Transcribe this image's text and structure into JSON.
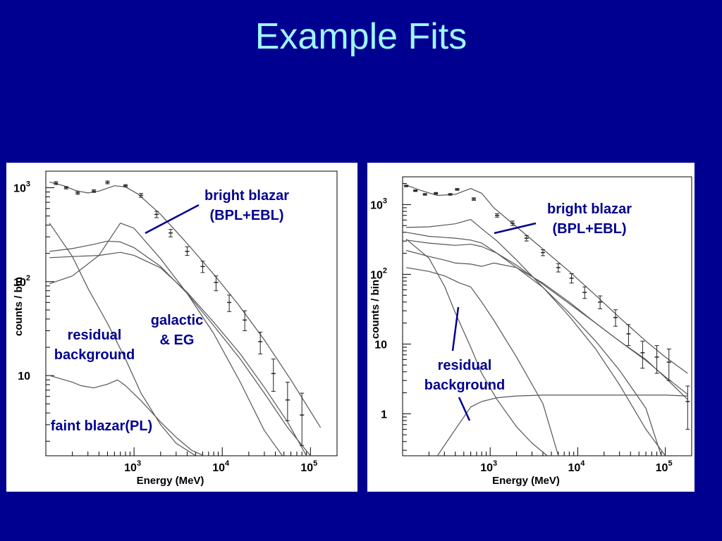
{
  "title": "Example Fits",
  "colors": {
    "background": "#000090",
    "title": "#9ff5ff",
    "annotation": "#000090",
    "curve": "#555555"
  },
  "chart_data": [
    {
      "type": "line",
      "xscale": "log",
      "yscale": "log",
      "xlabel": "Energy (MeV)",
      "ylabel": "counts / bin",
      "xlim": [
        100,
        200000
      ],
      "ylim": [
        1.4,
        1500
      ],
      "xticks": [
        {
          "v": 1000,
          "label": "10",
          "exp": "3"
        },
        {
          "v": 10000,
          "label": "10",
          "exp": "4"
        },
        {
          "v": 100000,
          "label": "10",
          "exp": "5"
        }
      ],
      "yticks": [
        {
          "v": 10,
          "label": "10",
          "exp": ""
        },
        {
          "v": 100,
          "label": "10",
          "exp": "2"
        },
        {
          "v": 1000,
          "label": "10",
          "exp": "3"
        }
      ],
      "annotations": [
        {
          "lines": [
            "bright blazar",
            "(BPL+EBL)"
          ]
        },
        {
          "lines": [
            "galactic",
            "& EG"
          ]
        },
        {
          "lines": [
            "residual",
            "background"
          ]
        },
        {
          "lines": [
            "faint blazar(PL)"
          ]
        }
      ],
      "series": [
        {
          "x": [
            110,
            160,
            220,
            300,
            400,
            600,
            800,
            1100,
            2000,
            4000,
            8000,
            15000,
            30000,
            60000,
            130000
          ],
          "y": [
            1150,
            1050,
            930,
            880,
            920,
            1050,
            1020,
            860,
            520,
            255,
            120,
            58,
            24,
            9,
            2.8
          ]
        },
        {
          "x": [
            110,
            200,
            400,
            700,
            1000,
            2000,
            4000,
            8000,
            16000,
            30000,
            48000
          ],
          "y": [
            95,
            115,
            190,
            420,
            370,
            175,
            75,
            28,
            8.5,
            2.6,
            1.4
          ]
        },
        {
          "x": [
            110,
            200,
            350,
            500,
            700,
            1000,
            2000,
            4000,
            8000,
            16000,
            30000,
            55000,
            100000
          ],
          "y": [
            210,
            225,
            250,
            270,
            265,
            230,
            145,
            75,
            34,
            15,
            6.5,
            2.8,
            1.4
          ]
        },
        {
          "x": [
            110,
            200,
            400,
            700,
            1000,
            2000,
            4000,
            8000,
            16000,
            30000,
            55000,
            90000
          ],
          "y": [
            180,
            185,
            190,
            205,
            190,
            140,
            77,
            37,
            17,
            7.5,
            3.2,
            1.4
          ]
        },
        {
          "x": [
            110,
            200,
            300,
            500,
            800,
            1200,
            2000,
            3000,
            5000
          ],
          "y": [
            420,
            185,
            85,
            36,
            15,
            6.5,
            3,
            1.9,
            1.4
          ]
        },
        {
          "x": [
            110,
            200,
            250,
            350,
            500,
            650,
            800,
            1200,
            2000,
            3000,
            4500,
            6200
          ],
          "y": [
            10,
            8.5,
            7.8,
            7.4,
            8.1,
            9,
            7.8,
            5.4,
            3.2,
            2.2,
            1.6,
            1.4
          ]
        }
      ],
      "points": [
        {
          "x": 130,
          "y": 1120,
          "lo": 1080,
          "hi": 1160
        },
        {
          "x": 170,
          "y": 1000,
          "lo": 970,
          "hi": 1030
        },
        {
          "x": 230,
          "y": 880,
          "lo": 850,
          "hi": 910
        },
        {
          "x": 350,
          "y": 920,
          "lo": 890,
          "hi": 950
        },
        {
          "x": 500,
          "y": 1140,
          "lo": 1100,
          "hi": 1180
        },
        {
          "x": 800,
          "y": 1050,
          "lo": 1020,
          "hi": 1080
        },
        {
          "x": 1200,
          "y": 830,
          "lo": 790,
          "hi": 870
        },
        {
          "x": 1800,
          "y": 520,
          "lo": 480,
          "hi": 560
        },
        {
          "x": 2600,
          "y": 330,
          "lo": 300,
          "hi": 360
        },
        {
          "x": 4000,
          "y": 210,
          "lo": 190,
          "hi": 235
        },
        {
          "x": 6000,
          "y": 145,
          "lo": 125,
          "hi": 165
        },
        {
          "x": 8500,
          "y": 98,
          "lo": 80,
          "hi": 115
        },
        {
          "x": 12000,
          "y": 60,
          "lo": 48,
          "hi": 72
        },
        {
          "x": 18000,
          "y": 39,
          "lo": 30,
          "hi": 49
        },
        {
          "x": 27000,
          "y": 23,
          "lo": 17,
          "hi": 29
        },
        {
          "x": 38000,
          "y": 10.5,
          "lo": 6.8,
          "hi": 15
        },
        {
          "x": 55000,
          "y": 5.5,
          "lo": 3.3,
          "hi": 8.5
        },
        {
          "x": 80000,
          "y": 3.8,
          "lo": 1.8,
          "hi": 6.5
        }
      ]
    },
    {
      "type": "line",
      "xscale": "log",
      "yscale": "log",
      "xlabel": "Energy (MeV)",
      "ylabel": "counts / bin",
      "xlim": [
        100,
        200000
      ],
      "ylim": [
        0.25,
        2500
      ],
      "xticks": [
        {
          "v": 1000,
          "label": "10",
          "exp": "3"
        },
        {
          "v": 10000,
          "label": "10",
          "exp": "4"
        },
        {
          "v": 100000,
          "label": "10",
          "exp": "5"
        }
      ],
      "yticks": [
        {
          "v": 1,
          "label": "1",
          "exp": ""
        },
        {
          "v": 10,
          "label": "10",
          "exp": ""
        },
        {
          "v": 100,
          "label": "10",
          "exp": "2"
        },
        {
          "v": 1000,
          "label": "10",
          "exp": "3"
        }
      ],
      "annotations": [
        {
          "lines": [
            "bright blazar",
            "(BPL+EBL)"
          ]
        },
        {
          "lines": [
            "residual",
            "background"
          ]
        }
      ],
      "series": [
        {
          "x": [
            110,
            160,
            250,
            400,
            600,
            800,
            1100,
            2000,
            4000,
            8000,
            16000,
            30000,
            60000,
            100000,
            180000
          ],
          "y": [
            1900,
            1600,
            1350,
            1400,
            1700,
            1450,
            900,
            480,
            230,
            110,
            50,
            24,
            11,
            6.5,
            3.8
          ]
        },
        {
          "x": [
            110,
            200,
            400,
            600,
            800,
            1200,
            2000,
            4000,
            8000,
            16000,
            30000,
            60000,
            100000
          ],
          "y": [
            470,
            480,
            530,
            610,
            450,
            300,
            160,
            65,
            25,
            8.5,
            2.6,
            0.6,
            0.25
          ]
        },
        {
          "x": [
            110,
            200,
            400,
            600,
            800,
            1200,
            2000,
            4000,
            8000,
            16000,
            30000,
            60000,
            90000
          ],
          "y": [
            400,
            350,
            330,
            310,
            280,
            200,
            125,
            65,
            28,
            11,
            4.2,
            1.2,
            0.25
          ]
        },
        {
          "x": [
            110,
            200,
            400,
            600,
            800,
            1200,
            2000,
            4000,
            8000,
            16000,
            30000,
            60000,
            100000,
            180000
          ],
          "y": [
            310,
            280,
            260,
            270,
            250,
            200,
            135,
            72,
            38,
            20,
            11,
            5.8,
            3.4,
            1.9
          ]
        },
        {
          "x": [
            110,
            200,
            300,
            400,
            600,
            800,
            1100,
            2000,
            4000,
            8000,
            16000,
            30000,
            60000,
            100000,
            180000
          ],
          "y": [
            220,
            180,
            160,
            145,
            140,
            130,
            145,
            125,
            75,
            40,
            20,
            11,
            6,
            3.3,
            1.6
          ]
        },
        {
          "x": [
            110,
            200,
            300,
            450,
            600,
            800,
            1100,
            2000,
            4000,
            6000
          ],
          "y": [
            125,
            110,
            95,
            75,
            66,
            40,
            22,
            6.5,
            1.4,
            0.25
          ]
        },
        {
          "x": [
            110,
            200,
            300,
            400,
            600,
            800,
            1200,
            2000,
            3000,
            4500
          ],
          "y": [
            320,
            170,
            68,
            28,
            9,
            3.8,
            1.6,
            0.65,
            0.38,
            0.25
          ]
        },
        {
          "x": [
            250,
            400,
            600,
            800,
            1200,
            2000,
            4000,
            10000,
            30000,
            100000,
            180000
          ],
          "y": [
            0.25,
            0.6,
            1.25,
            1.5,
            1.7,
            1.8,
            1.85,
            1.85,
            1.85,
            1.85,
            1.8
          ]
        }
      ],
      "points": [
        {
          "x": 110,
          "y": 1850,
          "lo": 1800,
          "hi": 1900
        },
        {
          "x": 140,
          "y": 1580,
          "lo": 1540,
          "hi": 1620
        },
        {
          "x": 180,
          "y": 1400,
          "lo": 1360,
          "hi": 1440
        },
        {
          "x": 240,
          "y": 1450,
          "lo": 1410,
          "hi": 1490
        },
        {
          "x": 350,
          "y": 1400,
          "lo": 1360,
          "hi": 1440
        },
        {
          "x": 420,
          "y": 1650,
          "lo": 1600,
          "hi": 1700
        },
        {
          "x": 650,
          "y": 1200,
          "lo": 1150,
          "hi": 1250
        },
        {
          "x": 1200,
          "y": 700,
          "lo": 660,
          "hi": 740
        },
        {
          "x": 1800,
          "y": 540,
          "lo": 500,
          "hi": 580
        },
        {
          "x": 2600,
          "y": 330,
          "lo": 300,
          "hi": 360
        },
        {
          "x": 4000,
          "y": 205,
          "lo": 185,
          "hi": 225
        },
        {
          "x": 6000,
          "y": 125,
          "lo": 108,
          "hi": 142
        },
        {
          "x": 8500,
          "y": 88,
          "lo": 75,
          "hi": 102
        },
        {
          "x": 12000,
          "y": 55,
          "lo": 45,
          "hi": 66
        },
        {
          "x": 18000,
          "y": 40,
          "lo": 32,
          "hi": 49
        },
        {
          "x": 27000,
          "y": 24,
          "lo": 18,
          "hi": 31
        },
        {
          "x": 38000,
          "y": 14,
          "lo": 9.5,
          "hi": 19
        },
        {
          "x": 55000,
          "y": 7.5,
          "lo": 4.5,
          "hi": 11
        },
        {
          "x": 80000,
          "y": 6.5,
          "lo": 3.8,
          "hi": 9.5
        },
        {
          "x": 110000,
          "y": 5.5,
          "lo": 3,
          "hi": 8.5
        },
        {
          "x": 180000,
          "y": 1.5,
          "lo": 0.6,
          "hi": 2.5
        }
      ]
    }
  ]
}
